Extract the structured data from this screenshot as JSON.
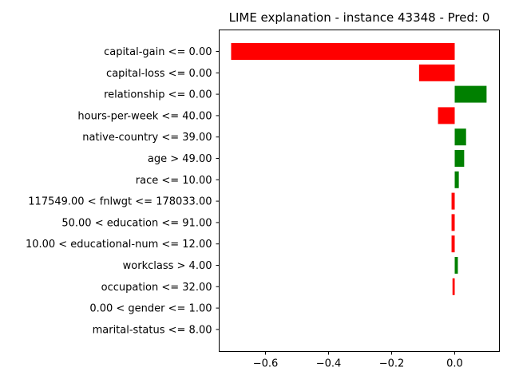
{
  "chart_data": {
    "type": "bar",
    "orientation": "horizontal",
    "title": "LIME explanation - instance 43348 - Pred: 0",
    "xlabel": "",
    "ylabel": "",
    "xlim": [
      -0.75,
      0.14
    ],
    "xticks": [
      -0.6,
      -0.4,
      -0.2,
      0.0
    ],
    "xtick_labels": [
      "−0.6",
      "−0.4",
      "−0.2",
      "0.0"
    ],
    "grid": false,
    "colors": {
      "positive": "#008000",
      "negative": "#ff0000"
    },
    "categories": [
      "capital-gain <= 0.00",
      "capital-loss <= 0.00",
      "relationship <= 0.00",
      "hours-per-week <= 40.00",
      "native-country <= 39.00",
      "age > 49.00",
      "race <= 10.00",
      "117549.00 < fnlwgt <= 178033.00",
      "50.00 < education <= 91.00",
      "10.00 < educational-num <= 12.00",
      "workclass > 4.00",
      "occupation <= 32.00",
      "0.00 < gender <= 1.00",
      "marital-status <= 8.00"
    ],
    "values": [
      -0.709,
      -0.113,
      0.101,
      -0.053,
      0.036,
      0.03,
      0.013,
      -0.01,
      -0.01,
      -0.01,
      0.01,
      -0.007,
      0.0,
      0.0
    ]
  }
}
